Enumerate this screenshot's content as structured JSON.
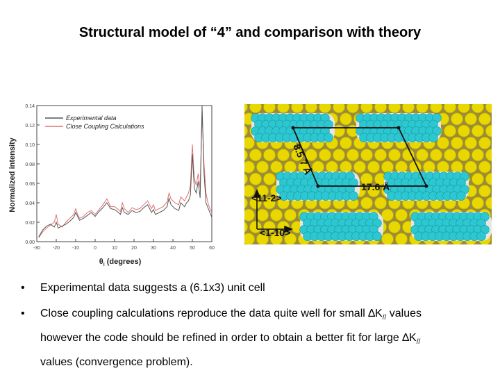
{
  "slide": {
    "title": "Structural model of “4” and comparison with theory"
  },
  "chart_data": {
    "type": "line",
    "xlabel": "θi (degrees)",
    "ylabel": "Normalized intensity",
    "xlim": [
      -30,
      60
    ],
    "ylim": [
      0.0,
      0.14
    ],
    "x_ticks": [
      "-30",
      "-20",
      "-10",
      "0",
      "10",
      "20",
      "30",
      "40",
      "50",
      "60"
    ],
    "y_ticks": [
      "0.00",
      "0.02",
      "0.04",
      "0.06",
      "0.08",
      "0.10",
      "0.12",
      "0.14"
    ],
    "legend_position": "top-left",
    "series": [
      {
        "name": "Experimental data",
        "color": "#555555",
        "x": [
          -29,
          -27,
          -25,
          -23,
          -21,
          -20,
          -19,
          -17,
          -15,
          -13,
          -11,
          -10,
          -9,
          -8,
          -6,
          -4,
          -2,
          0,
          2,
          4,
          6,
          8,
          10,
          12,
          13,
          14,
          15,
          17,
          19,
          21,
          23,
          25,
          27,
          29,
          30,
          31,
          33,
          35,
          37,
          38,
          39,
          41,
          43,
          44,
          45,
          46,
          47,
          48,
          49,
          50,
          51,
          52,
          53,
          54,
          55,
          56,
          57,
          58,
          59,
          60
        ],
        "y": [
          0.005,
          0.012,
          0.016,
          0.018,
          0.015,
          0.02,
          0.014,
          0.016,
          0.018,
          0.021,
          0.025,
          0.03,
          0.026,
          0.022,
          0.024,
          0.027,
          0.03,
          0.026,
          0.031,
          0.035,
          0.04,
          0.034,
          0.033,
          0.03,
          0.028,
          0.035,
          0.03,
          0.028,
          0.032,
          0.03,
          0.031,
          0.035,
          0.038,
          0.03,
          0.033,
          0.028,
          0.03,
          0.032,
          0.036,
          0.045,
          0.038,
          0.034,
          0.032,
          0.04,
          0.038,
          0.036,
          0.04,
          0.042,
          0.048,
          0.09,
          0.055,
          0.05,
          0.062,
          0.045,
          0.14,
          0.07,
          0.04,
          0.035,
          0.03,
          0.025
        ]
      },
      {
        "name": "Close Coupling Calculations",
        "color": "#e07070",
        "x": [
          -29,
          -27,
          -25,
          -23,
          -21,
          -20,
          -19,
          -17,
          -15,
          -13,
          -11,
          -10,
          -9,
          -8,
          -6,
          -4,
          -2,
          0,
          2,
          4,
          6,
          8,
          10,
          12,
          13,
          14,
          15,
          17,
          19,
          21,
          23,
          25,
          27,
          29,
          30,
          31,
          33,
          35,
          37,
          38,
          39,
          41,
          43,
          44,
          45,
          46,
          47,
          48,
          49,
          50,
          51,
          52,
          53,
          54,
          55,
          56,
          57,
          58,
          59,
          60
        ],
        "y": [
          0.004,
          0.01,
          0.014,
          0.017,
          0.02,
          0.028,
          0.018,
          0.015,
          0.02,
          0.024,
          0.028,
          0.034,
          0.028,
          0.024,
          0.026,
          0.03,
          0.032,
          0.028,
          0.033,
          0.038,
          0.044,
          0.036,
          0.036,
          0.033,
          0.031,
          0.04,
          0.034,
          0.03,
          0.035,
          0.033,
          0.034,
          0.038,
          0.042,
          0.034,
          0.038,
          0.032,
          0.034,
          0.036,
          0.041,
          0.05,
          0.044,
          0.04,
          0.038,
          0.046,
          0.044,
          0.042,
          0.046,
          0.05,
          0.058,
          0.1,
          0.065,
          0.058,
          0.07,
          0.055,
          0.132,
          0.08,
          0.05,
          0.04,
          0.034,
          0.03
        ]
      }
    ]
  },
  "surface_model": {
    "dim_a": "8.5",
    "dim_a_unit": "7 Å",
    "dim_b": "17.6 Å",
    "dir_1": "<11-2>",
    "dir_2": "<1-10>",
    "substrate_color": "#e8d800",
    "molecule_color": "#2cc7d0",
    "hydrogen_color": "#e6e6e6"
  },
  "bullets": [
    {
      "marker": "•",
      "text": "Experimental data suggests a (6.1x3) unit cell"
    },
    {
      "marker": "•",
      "line1_pre": "Close coupling calculations reproduce the data quite well for small ",
      "delta": "∆K",
      "sub": "//",
      "line1_post": " values",
      "line2_pre": "however the code should be refined in order to obtain a better fit for large ",
      "line3": "values (convergence problem)."
    }
  ]
}
